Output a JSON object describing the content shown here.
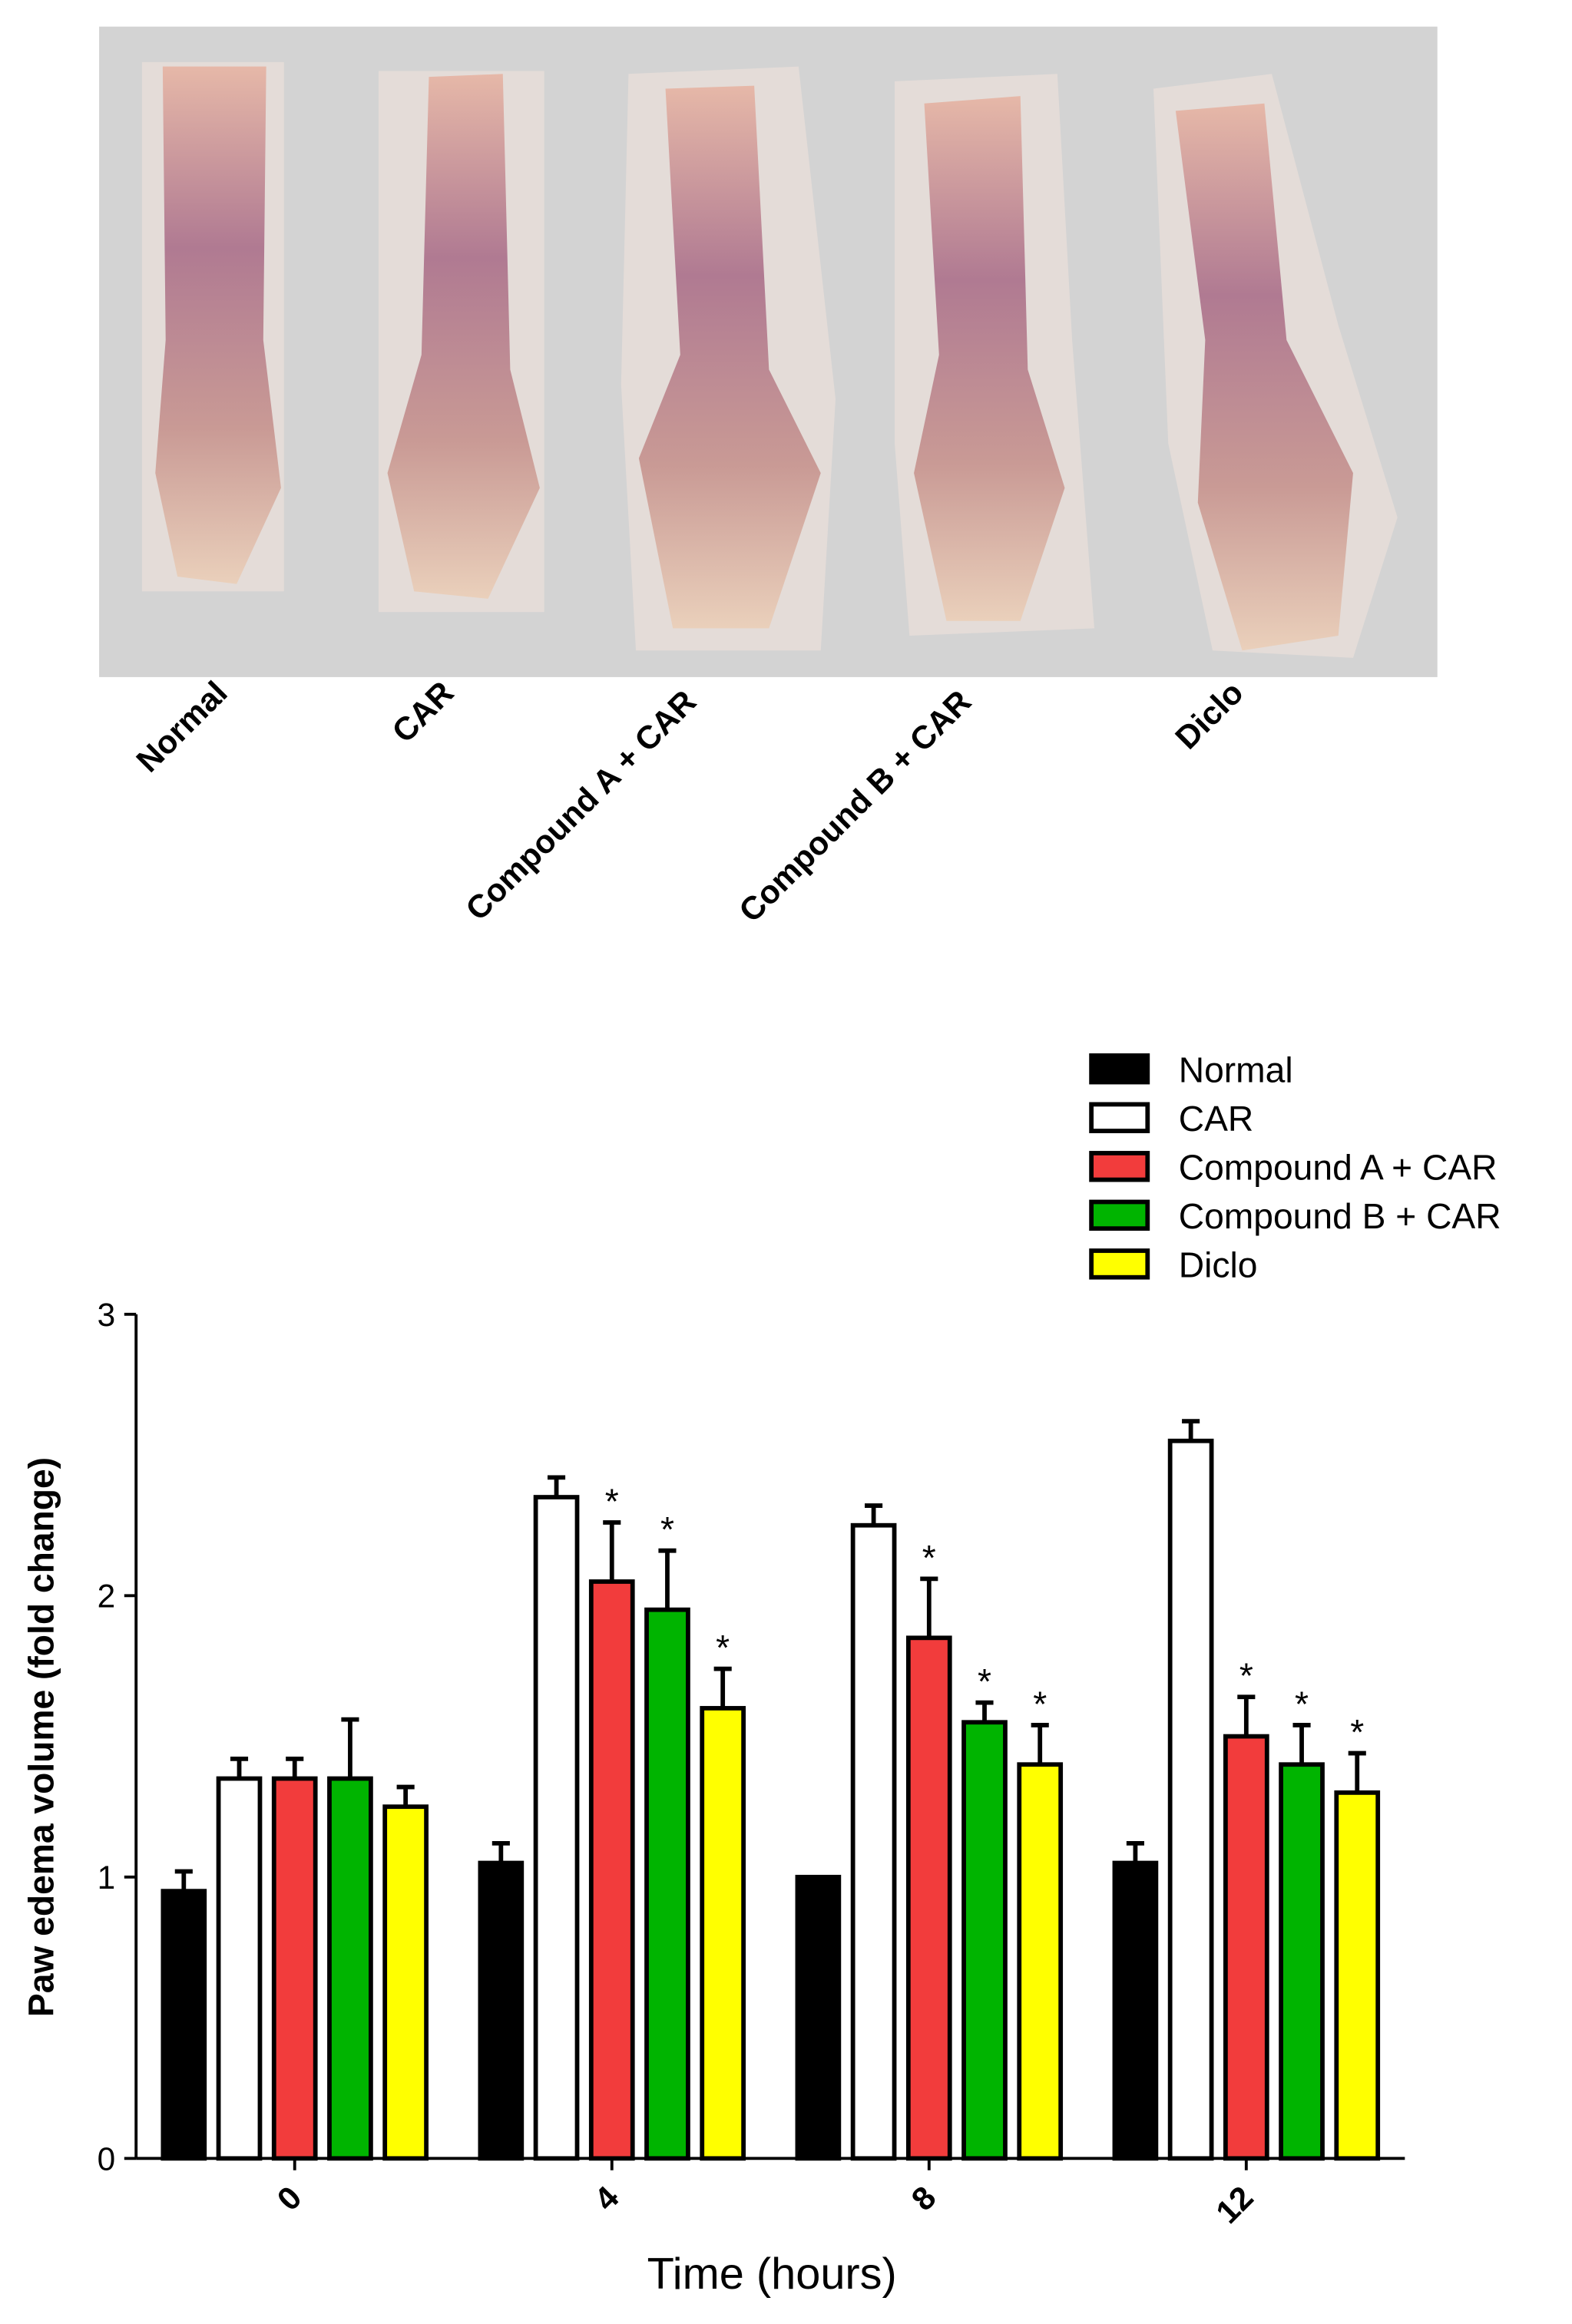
{
  "photo_panel": {
    "labels": [
      "Normal",
      "CAR",
      "Compound A + CAR",
      "Compound B + CAR",
      "Diclo"
    ]
  },
  "chart_data": {
    "type": "bar",
    "x_label": "Time (hours)",
    "y_label": "Paw edema volume (fold change)",
    "categories": [
      "0",
      "4",
      "8",
      "12"
    ],
    "series": [
      {
        "name": "Normal",
        "color": "#000000",
        "values": [
          0.95,
          1.05,
          1.0,
          1.05
        ],
        "errors": [
          0.07,
          0.07,
          0,
          0.07
        ],
        "significance": [
          null,
          null,
          null,
          null
        ]
      },
      {
        "name": "CAR",
        "color": "#ffffff",
        "values": [
          1.35,
          2.35,
          2.25,
          2.55
        ],
        "errors": [
          0.07,
          0.07,
          0.07,
          0.07
        ],
        "significance": [
          null,
          null,
          null,
          null
        ]
      },
      {
        "name": "Compound A + CAR",
        "color": "#f23c3c",
        "values": [
          1.35,
          2.05,
          1.85,
          1.5
        ],
        "errors": [
          0.07,
          0.21,
          0.21,
          0.14
        ],
        "significance": [
          null,
          "*",
          "*",
          "*"
        ]
      },
      {
        "name": "Compound B + CAR",
        "color": "#00b400",
        "values": [
          1.35,
          1.95,
          1.55,
          1.4
        ],
        "errors": [
          0.21,
          0.21,
          0.07,
          0.14
        ],
        "significance": [
          null,
          "*",
          "*",
          "*"
        ]
      },
      {
        "name": "Diclo",
        "color": "#ffff00",
        "values": [
          1.25,
          1.6,
          1.4,
          1.3
        ],
        "errors": [
          0.07,
          0.14,
          0.14,
          0.14
        ],
        "significance": [
          null,
          "*",
          "*",
          "*"
        ]
      }
    ],
    "ylim": [
      0,
      3
    ],
    "yticks": [
      0,
      1,
      2,
      3
    ]
  }
}
